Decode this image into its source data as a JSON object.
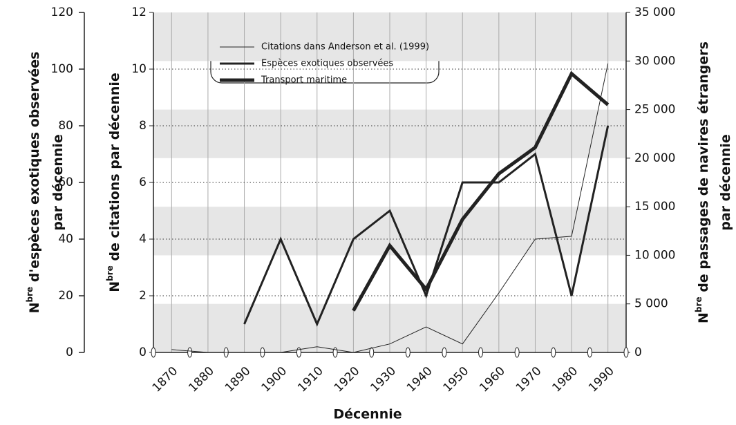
{
  "chart_data": {
    "type": "line",
    "categories": [
      "1870",
      "1880",
      "1890",
      "1900",
      "1910",
      "1920",
      "1930",
      "1940",
      "1950",
      "1960",
      "1970",
      "1980",
      "1990"
    ],
    "x_label": "Décennie",
    "y_label": {
      "prefix": "N",
      "sup": "bre",
      "lines": [
        " de citations par décennie"
      ]
    },
    "y2_label": {
      "prefix": "N",
      "sup": "bre",
      "lines": [
        " de passages de navires étrangers",
        "par décennie"
      ]
    },
    "y3_label": {
      "prefix": "N",
      "sup": "bre",
      "lines": [
        " d'espèces exotiques observées",
        "par décennie"
      ]
    },
    "ylim": [
      0,
      12
    ],
    "yticks": [
      0,
      2,
      4,
      6,
      8,
      10,
      12
    ],
    "y2lim": [
      0,
      35000
    ],
    "y2ticks": [
      0,
      {
        "value": 5000,
        "label": "5 000"
      },
      {
        "value": 10000,
        "label": "10 000"
      },
      {
        "value": 15000,
        "label": "15 000"
      },
      {
        "value": 20000,
        "label": "20 000"
      },
      {
        "value": 25000,
        "label": "25 000"
      },
      {
        "value": 30000,
        "label": "30 000"
      },
      {
        "value": 35000,
        "label": "35 000"
      }
    ],
    "y3lim": [
      0,
      120
    ],
    "y3ticks": [
      0,
      20,
      40,
      60,
      80,
      100,
      120
    ],
    "grid": true,
    "series": [
      {
        "name": "Citations dans Anderson et al. (1999)",
        "color": "#222222",
        "width": 1,
        "axis": "y",
        "values": [
          0.1,
          0,
          0,
          0,
          0.2,
          0,
          0.3,
          0.9,
          0.3,
          2.1,
          4.0,
          4.1,
          10.2
        ]
      },
      {
        "name": "Espèces exotiques observées",
        "color": "#222222",
        "width": 3,
        "axis": "y3",
        "values": [
          null,
          null,
          10,
          40,
          10,
          40,
          50,
          20,
          60,
          60,
          70,
          20,
          80
        ]
      },
      {
        "name": "Transport maritime",
        "color": "#222222",
        "width": 5,
        "axis": "y2",
        "values": [
          null,
          null,
          null,
          null,
          null,
          4300,
          11000,
          6500,
          13700,
          18400,
          21100,
          28700,
          25500
        ]
      }
    ]
  }
}
